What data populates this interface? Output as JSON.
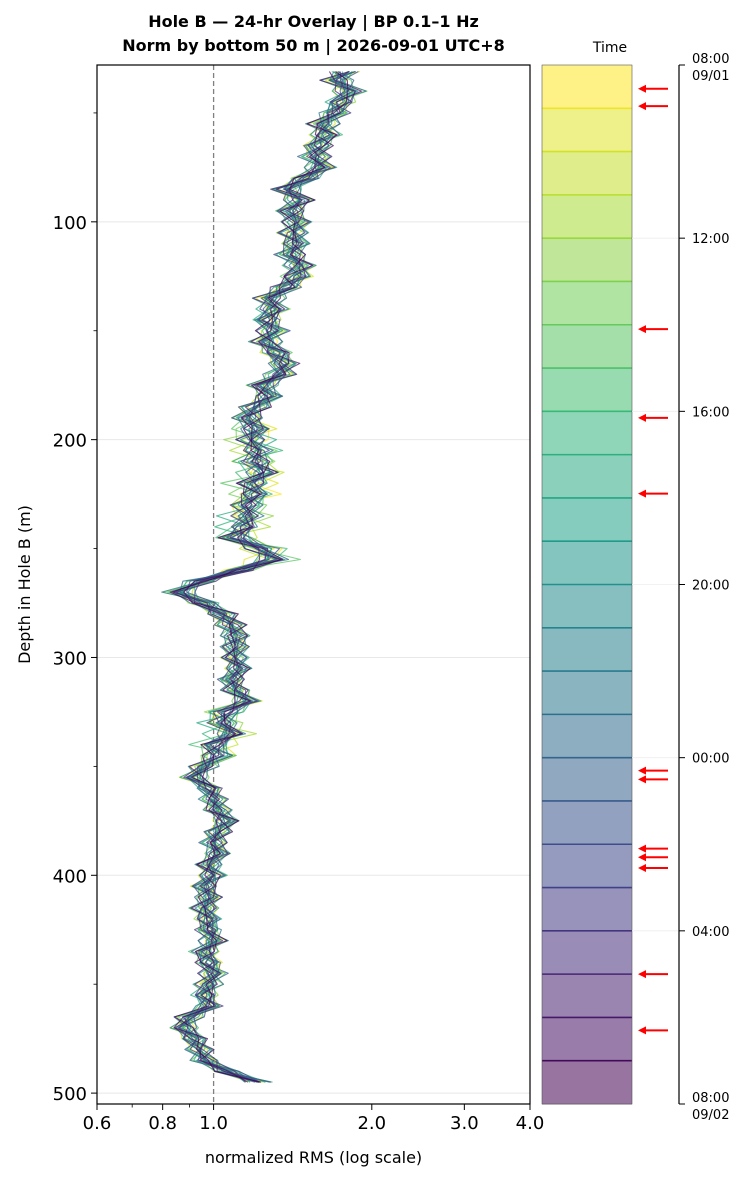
{
  "chart_data": {
    "type": "line",
    "title_line1": "Hole B — 24-hr Overlay  |  BP 0.1–1 Hz",
    "title_line2": "Norm by bottom 50 m  |  2026-09-01 UTC+8",
    "xlabel": "normalized RMS  (log scale)",
    "ylabel": "Depth in Hole B (m)",
    "x_scale": "log",
    "xlim": [
      0.6,
      4.0
    ],
    "ylim": [
      505,
      28
    ],
    "x_ticks": [
      0.6,
      0.8,
      1.0,
      2.0,
      3.0,
      4.0
    ],
    "x_tick_labels": [
      "0.6",
      "0.8",
      "1.0",
      "2.0",
      "3.0",
      "4.0"
    ],
    "y_ticks": [
      100,
      200,
      300,
      400,
      500
    ],
    "y_tick_labels": [
      "100",
      "200",
      "300",
      "400",
      "500"
    ],
    "reference_line_x": 1.0,
    "grid": "horizontal",
    "n_traces": 24,
    "depth": [
      31,
      35,
      40,
      45,
      50,
      55,
      60,
      65,
      70,
      75,
      80,
      85,
      90,
      95,
      100,
      105,
      110,
      115,
      120,
      125,
      130,
      135,
      140,
      145,
      150,
      155,
      160,
      165,
      170,
      175,
      180,
      185,
      190,
      195,
      200,
      205,
      210,
      215,
      220,
      225,
      230,
      235,
      240,
      245,
      250,
      255,
      260,
      265,
      270,
      275,
      280,
      285,
      290,
      295,
      300,
      305,
      310,
      315,
      320,
      325,
      330,
      335,
      340,
      345,
      350,
      355,
      360,
      365,
      370,
      375,
      380,
      385,
      390,
      395,
      400,
      405,
      410,
      415,
      420,
      425,
      430,
      435,
      440,
      445,
      450,
      455,
      460,
      465,
      470,
      475,
      480,
      485,
      490,
      495
    ],
    "series": [
      {
        "values": [
          1.78,
          1.72,
          1.82,
          1.74,
          1.7,
          1.62,
          1.64,
          1.58,
          1.56,
          1.6,
          1.5,
          1.38,
          1.46,
          1.4,
          1.44,
          1.42,
          1.44,
          1.4,
          1.46,
          1.44,
          1.38,
          1.28,
          1.3,
          1.26,
          1.3,
          1.26,
          1.32,
          1.36,
          1.34,
          1.24,
          1.28,
          1.2,
          1.16,
          1.2,
          1.18,
          1.22,
          1.2,
          1.24,
          1.18,
          1.2,
          1.16,
          1.16,
          1.14,
          1.1,
          1.24,
          1.3,
          1.12,
          0.94,
          0.86,
          0.96,
          1.04,
          1.08,
          1.1,
          1.1,
          1.1,
          1.12,
          1.08,
          1.1,
          1.16,
          1.06,
          1.04,
          1.08,
          1.0,
          1.02,
          0.96,
          0.92,
          0.98,
          1.0,
          1.02,
          1.06,
          1.02,
          1.0,
          1.02,
          0.98,
          1.0,
          0.96,
          0.98,
          0.96,
          0.98,
          0.98,
          1.0,
          0.96,
          0.98,
          1.0,
          0.98,
          0.96,
          0.98,
          0.9,
          0.88,
          0.92,
          0.94,
          0.96,
          1.06,
          1.22
        ]
      }
    ],
    "colorbar": {
      "label": "Time",
      "tick_labels": [
        "08:00\n09/01",
        "12:00",
        "16:00",
        "20:00",
        "00:00",
        "04:00",
        "08:00\n09/02"
      ],
      "tick_hours": [
        0,
        4,
        8,
        12,
        16,
        20,
        24
      ],
      "colormap": "viridis",
      "n_bins": 24
    },
    "arrow_hours": [
      0.55,
      0.95,
      6.1,
      8.15,
      9.9,
      16.3,
      16.5,
      18.1,
      18.3,
      18.55,
      21.0,
      22.3
    ],
    "colors": {
      "arrow": "#ff0000",
      "reference_line": "#808080",
      "grid": "#e8e8e8"
    }
  }
}
